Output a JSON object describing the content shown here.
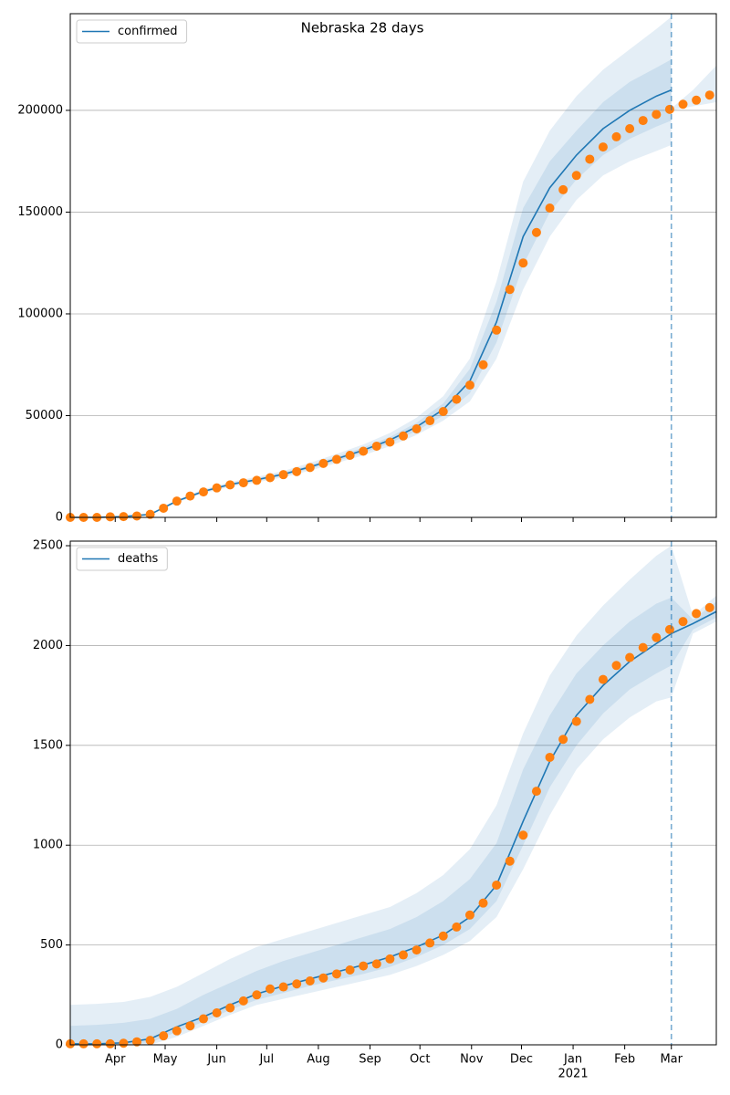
{
  "chart_data": [
    {
      "type": "line",
      "title": "Nebraska 28 days",
      "xlim": [
        0,
        388
      ],
      "ylim": [
        0,
        247500
      ],
      "xticks": [
        27,
        57,
        88,
        118,
        149,
        180,
        210,
        241,
        271,
        302,
        333,
        361
      ],
      "yticks": [
        0,
        50000,
        100000,
        150000,
        200000
      ],
      "grid": true,
      "legend": "upper left",
      "vline": 361,
      "series": [
        {
          "name": "confirmed",
          "color": "#1f77b4",
          "x": [
            0,
            16,
            32,
            48,
            64,
            80,
            96,
            112,
            128,
            144,
            160,
            176,
            192,
            208,
            224,
            240,
            256,
            272,
            288,
            304,
            320,
            336,
            352,
            361
          ],
          "values": [
            0,
            0,
            400,
            1500,
            8000,
            12800,
            16200,
            18500,
            21200,
            24800,
            28800,
            33000,
            38000,
            44500,
            53000,
            67000,
            96000,
            138000,
            162000,
            178000,
            191000,
            200000,
            207000,
            210000
          ]
        }
      ],
      "bands": [
        {
          "color": "#1f77b4",
          "x": [
            0,
            16,
            32,
            48,
            64,
            80,
            96,
            112,
            128,
            144,
            160,
            176,
            192,
            208,
            224,
            240,
            256,
            272,
            288,
            304,
            320,
            336,
            352,
            361
          ],
          "low": [
            0,
            0,
            300,
            1300,
            7300,
            11800,
            15000,
            17200,
            19700,
            23000,
            26700,
            30500,
            35000,
            40500,
            47500,
            57000,
            78000,
            112000,
            138000,
            156000,
            168000,
            175000,
            180000,
            183000
          ],
          "high": [
            0,
            0,
            500,
            1700,
            8700,
            13800,
            17400,
            19900,
            22800,
            26800,
            31200,
            35800,
            41500,
            49000,
            59500,
            78000,
            116000,
            165000,
            190000,
            207000,
            220000,
            230000,
            240000,
            246000
          ]
        },
        {
          "color": "#1f77b4",
          "x": [
            0,
            16,
            32,
            48,
            64,
            80,
            96,
            112,
            128,
            144,
            160,
            176,
            192,
            208,
            224,
            240,
            256,
            272,
            288,
            304,
            320,
            336,
            352,
            361
          ],
          "low": [
            0,
            0,
            350,
            1400,
            7700,
            12300,
            15600,
            17800,
            20400,
            23900,
            27700,
            31700,
            36500,
            42500,
            50000,
            61000,
            86000,
            124000,
            150000,
            166000,
            178000,
            186000,
            192000,
            195000
          ],
          "high": [
            0,
            0,
            450,
            1600,
            8300,
            13300,
            16800,
            19200,
            22000,
            25700,
            29900,
            34300,
            39500,
            46500,
            56000,
            73000,
            106000,
            152000,
            175000,
            190000,
            204000,
            214000,
            221000,
            225000
          ]
        },
        {
          "color": "#1f77b4",
          "x": [
            361,
            374,
            388
          ],
          "low": [
            200000,
            202000,
            204000
          ],
          "high": [
            201000,
            210000,
            222000
          ]
        }
      ],
      "observed": {
        "color": "#ff7f0e",
        "x": [
          0,
          8,
          16,
          24,
          32,
          40,
          48,
          56,
          64,
          72,
          80,
          88,
          96,
          104,
          112,
          120,
          128,
          136,
          144,
          152,
          160,
          168,
          176,
          184,
          192,
          200,
          208,
          216,
          224,
          232,
          240,
          248,
          256,
          264,
          272,
          280,
          288,
          296,
          304,
          312,
          320,
          328,
          336,
          344,
          352,
          360,
          368,
          376,
          384
        ],
        "values": [
          0,
          0,
          0,
          300,
          400,
          700,
          1500,
          4500,
          8000,
          10500,
          12500,
          14500,
          16000,
          17000,
          18200,
          19500,
          21000,
          22500,
          24500,
          26500,
          28500,
          30500,
          32500,
          35000,
          37000,
          40000,
          43500,
          47500,
          52000,
          58000,
          65000,
          75000,
          92000,
          112000,
          125000,
          140000,
          152000,
          161000,
          168000,
          176000,
          182000,
          187000,
          191000,
          195000,
          198000,
          200500,
          203000,
          205000,
          207500
        ]
      }
    },
    {
      "type": "line",
      "xlim": [
        0,
        388
      ],
      "ylim": [
        0,
        2523
      ],
      "xticks": [
        {
          "value": 27,
          "label": "Apr"
        },
        {
          "value": 57,
          "label": "May"
        },
        {
          "value": 88,
          "label": "Jun"
        },
        {
          "value": 118,
          "label": "Jul"
        },
        {
          "value": 149,
          "label": "Aug"
        },
        {
          "value": 180,
          "label": "Sep"
        },
        {
          "value": 210,
          "label": "Oct"
        },
        {
          "value": 241,
          "label": "Nov"
        },
        {
          "value": 271,
          "label": "Dec"
        },
        {
          "value": 302,
          "label": "Jan"
        },
        {
          "value": 333,
          "label": "Feb"
        },
        {
          "value": 361,
          "label": "Mar"
        }
      ],
      "year_label": {
        "value": 302,
        "label": "2021"
      },
      "yticks": [
        0,
        500,
        1000,
        1500,
        2000,
        2500
      ],
      "grid": true,
      "legend": "upper left",
      "vline": 361,
      "series": [
        {
          "name": "deaths",
          "color": "#1f77b4",
          "x": [
            0,
            16,
            32,
            48,
            64,
            80,
            96,
            112,
            128,
            144,
            160,
            176,
            192,
            208,
            224,
            240,
            256,
            272,
            288,
            304,
            320,
            336,
            352,
            361,
            374,
            388
          ],
          "values": [
            5,
            5,
            10,
            30,
            90,
            140,
            200,
            255,
            295,
            330,
            365,
            400,
            440,
            490,
            550,
            640,
            800,
            1120,
            1420,
            1650,
            1800,
            1920,
            2010,
            2060,
            2110,
            2170
          ]
        }
      ],
      "bands": [
        {
          "color": "#1f77b4",
          "x": [
            0,
            16,
            32,
            48,
            64,
            80,
            96,
            112,
            128,
            144,
            160,
            176,
            192,
            208,
            224,
            240,
            256,
            272,
            288,
            304,
            320,
            336,
            352,
            361,
            374,
            388
          ],
          "low": [
            0,
            0,
            0,
            0,
            40,
            95,
            150,
            200,
            230,
            260,
            290,
            320,
            350,
            395,
            450,
            520,
            640,
            880,
            1150,
            1380,
            1530,
            1640,
            1720,
            1740,
            2060,
            2120
          ],
          "high": [
            200,
            205,
            215,
            240,
            290,
            360,
            430,
            490,
            530,
            570,
            610,
            650,
            690,
            760,
            850,
            980,
            1200,
            1560,
            1850,
            2050,
            2200,
            2330,
            2450,
            2500,
            2150,
            2250
          ]
        },
        {
          "color": "#1f77b4",
          "x": [
            0,
            16,
            32,
            48,
            64,
            80,
            96,
            112,
            128,
            144,
            160,
            176,
            192,
            208,
            224,
            240,
            256,
            272,
            288,
            304,
            320,
            336,
            352,
            361,
            374,
            388
          ],
          "low": [
            0,
            0,
            0,
            10,
            65,
            115,
            175,
            225,
            260,
            295,
            325,
            355,
            390,
            440,
            500,
            580,
            720,
            1000,
            1290,
            1500,
            1660,
            1780,
            1860,
            1900,
            2080,
            2140
          ],
          "high": [
            95,
            100,
            110,
            130,
            180,
            250,
            310,
            370,
            420,
            460,
            500,
            540,
            580,
            640,
            720,
            830,
            1010,
            1380,
            1650,
            1860,
            2000,
            2120,
            2210,
            2240,
            2130,
            2220
          ]
        }
      ],
      "observed": {
        "color": "#ff7f0e",
        "x": [
          0,
          8,
          16,
          24,
          32,
          40,
          48,
          56,
          64,
          72,
          80,
          88,
          96,
          104,
          112,
          120,
          128,
          136,
          144,
          152,
          160,
          168,
          176,
          184,
          192,
          200,
          208,
          216,
          224,
          232,
          240,
          248,
          256,
          264,
          272,
          280,
          288,
          296,
          304,
          312,
          320,
          328,
          336,
          344,
          352,
          360,
          368,
          376,
          384
        ],
        "values": [
          5,
          5,
          5,
          5,
          8,
          15,
          22,
          45,
          70,
          95,
          130,
          160,
          185,
          220,
          250,
          280,
          290,
          305,
          320,
          335,
          355,
          375,
          395,
          405,
          430,
          450,
          475,
          510,
          545,
          590,
          650,
          710,
          800,
          920,
          1050,
          1270,
          1440,
          1530,
          1620,
          1730,
          1830,
          1900,
          1940,
          1990,
          2040,
          2080,
          2120,
          2160,
          2190
        ]
      }
    }
  ]
}
